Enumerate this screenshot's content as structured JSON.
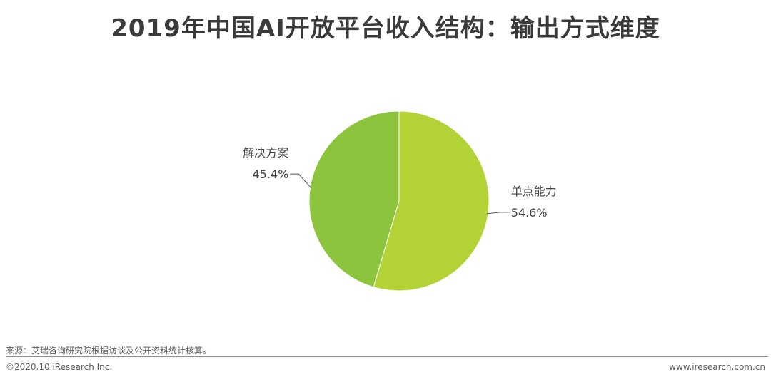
{
  "title": "2019年中国AI开放平台收入结构：输出方式维度",
  "chart_data": {
    "type": "pie",
    "title": "2019年中国AI开放平台收入结构：输出方式维度",
    "start_angle_deg": 0,
    "direction": "clockwise",
    "slices": [
      {
        "label": "单点能力",
        "value": 54.6,
        "value_label": "54.6%",
        "color": "#b2d235"
      },
      {
        "label": "解决方案",
        "value": 45.4,
        "value_label": "45.4%",
        "color": "#8cc43e"
      }
    ]
  },
  "footer": {
    "source": "来源：艾瑞咨询研究院根据访谈及公开资料统计核算。",
    "copyright": "©2020.10 iResearch Inc.",
    "website": "www.iresearch.com.cn"
  }
}
